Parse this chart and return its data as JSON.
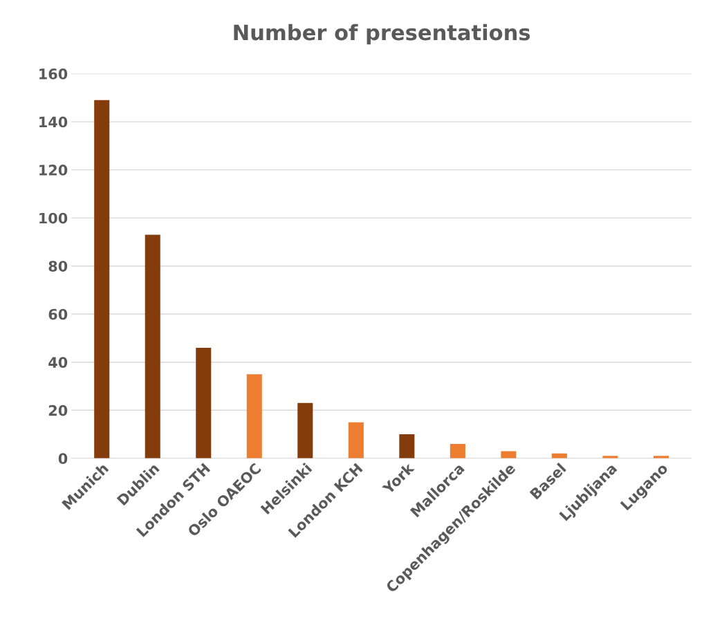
{
  "chart_data": {
    "type": "bar",
    "title": "Number of presentations",
    "categories": [
      "Munich",
      "Dublin",
      "London STH",
      "Oslo OAEOC",
      "Helsinki",
      "London KCH",
      "York",
      "Mallorca",
      "Copenhagen/Roskilde",
      "Basel",
      "Ljubljana",
      "Lugano"
    ],
    "values": [
      149,
      93,
      46,
      35,
      23,
      15,
      10,
      6,
      3,
      2,
      1,
      1
    ],
    "colors": [
      "#843c0c",
      "#843c0c",
      "#843c0c",
      "#ed7d31",
      "#843c0c",
      "#ed7d31",
      "#843c0c",
      "#ed7d31",
      "#ed7d31",
      "#ed7d31",
      "#ed7d31",
      "#ed7d31"
    ],
    "ylim": [
      0,
      160
    ],
    "yticks": [
      0,
      20,
      40,
      60,
      80,
      100,
      120,
      140,
      160
    ],
    "grid": "y",
    "legend": false
  }
}
